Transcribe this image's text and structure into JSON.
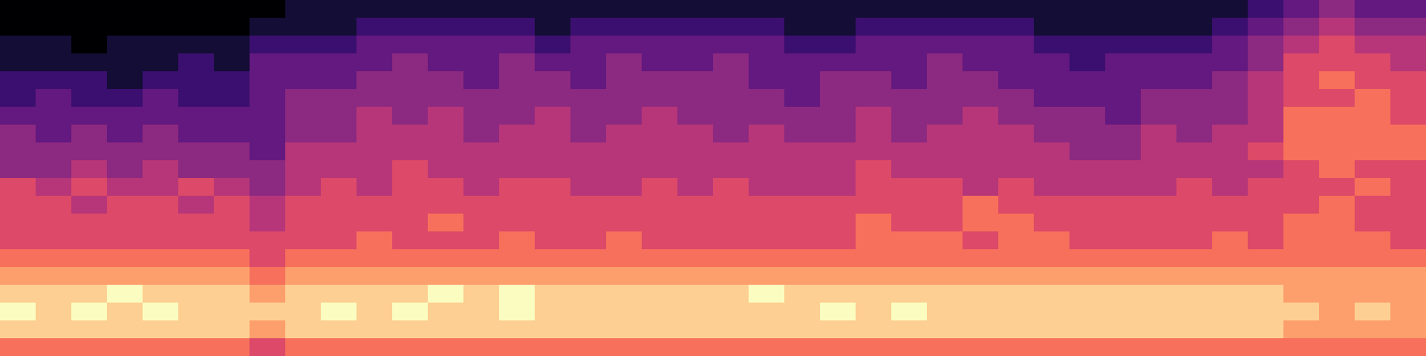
{
  "chart_data": {
    "type": "heatmap",
    "color": "magma",
    "tick_labels": false,
    "cell_range": [
      0,
      10
    ],
    "cells": [
      [
        0,
        0,
        0,
        0,
        0,
        0,
        0,
        0,
        1,
        1,
        1,
        1,
        1,
        1,
        1,
        1,
        1,
        1,
        1,
        1,
        1,
        1,
        1,
        1,
        1,
        1,
        1,
        1,
        1,
        1,
        1,
        1,
        1,
        1,
        1,
        2,
        3,
        4,
        3,
        3
      ],
      [
        0,
        0,
        0,
        0,
        0,
        0,
        0,
        1,
        1,
        1,
        2,
        2,
        2,
        2,
        2,
        1,
        2,
        2,
        2,
        2,
        2,
        2,
        1,
        1,
        2,
        2,
        2,
        2,
        2,
        1,
        1,
        1,
        1,
        1,
        2,
        3,
        4,
        5,
        4,
        4
      ],
      [
        1,
        1,
        0,
        1,
        1,
        1,
        1,
        2,
        2,
        2,
        3,
        3,
        3,
        3,
        3,
        2,
        3,
        3,
        3,
        3,
        3,
        3,
        2,
        2,
        3,
        3,
        3,
        3,
        3,
        2,
        2,
        2,
        2,
        2,
        3,
        4,
        5,
        6,
        5,
        5
      ],
      [
        1,
        1,
        1,
        1,
        1,
        2,
        1,
        3,
        3,
        3,
        3,
        4,
        3,
        3,
        4,
        3,
        3,
        4,
        3,
        3,
        4,
        3,
        3,
        3,
        3,
        3,
        4,
        3,
        3,
        3,
        2,
        3,
        3,
        3,
        3,
        4,
        6,
        6,
        6,
        5
      ],
      [
        2,
        2,
        2,
        1,
        2,
        2,
        2,
        3,
        3,
        3,
        4,
        4,
        4,
        3,
        4,
        4,
        3,
        4,
        4,
        4,
        4,
        3,
        3,
        4,
        4,
        3,
        4,
        4,
        3,
        3,
        3,
        3,
        3,
        3,
        4,
        5,
        6,
        7,
        6,
        6
      ],
      [
        2,
        3,
        2,
        2,
        3,
        2,
        2,
        3,
        4,
        4,
        4,
        4,
        4,
        4,
        4,
        4,
        4,
        4,
        4,
        4,
        4,
        4,
        3,
        4,
        4,
        4,
        4,
        4,
        4,
        3,
        3,
        3,
        4,
        4,
        4,
        5,
        6,
        6,
        7,
        6
      ],
      [
        3,
        3,
        3,
        3,
        3,
        3,
        3,
        3,
        4,
        4,
        5,
        4,
        5,
        4,
        4,
        5,
        4,
        4,
        5,
        4,
        4,
        4,
        4,
        4,
        5,
        4,
        4,
        5,
        4,
        4,
        4,
        3,
        4,
        4,
        4,
        5,
        7,
        7,
        7,
        6
      ],
      [
        4,
        3,
        4,
        3,
        4,
        3,
        3,
        3,
        4,
        4,
        5,
        5,
        5,
        4,
        5,
        5,
        4,
        5,
        5,
        5,
        4,
        5,
        4,
        4,
        5,
        4,
        5,
        5,
        5,
        4,
        4,
        4,
        5,
        4,
        5,
        5,
        7,
        7,
        7,
        7
      ],
      [
        4,
        4,
        4,
        4,
        4,
        4,
        4,
        3,
        5,
        5,
        5,
        5,
        5,
        5,
        5,
        5,
        5,
        5,
        5,
        5,
        5,
        5,
        5,
        5,
        5,
        5,
        5,
        5,
        5,
        5,
        4,
        4,
        5,
        5,
        5,
        6,
        7,
        7,
        7,
        7
      ],
      [
        4,
        4,
        5,
        4,
        5,
        4,
        4,
        4,
        5,
        5,
        5,
        6,
        5,
        5,
        5,
        5,
        5,
        5,
        5,
        5,
        5,
        5,
        5,
        5,
        6,
        5,
        5,
        5,
        5,
        5,
        5,
        5,
        5,
        5,
        5,
        5,
        6,
        7,
        6,
        6
      ],
      [
        6,
        5,
        6,
        5,
        5,
        6,
        5,
        4,
        5,
        6,
        5,
        6,
        6,
        5,
        6,
        6,
        5,
        5,
        6,
        5,
        6,
        5,
        5,
        5,
        6,
        6,
        6,
        5,
        6,
        5,
        5,
        5,
        5,
        6,
        5,
        6,
        6,
        6,
        7,
        6
      ],
      [
        6,
        6,
        5,
        6,
        6,
        5,
        6,
        5,
        6,
        6,
        6,
        6,
        6,
        6,
        6,
        6,
        6,
        6,
        6,
        6,
        6,
        6,
        6,
        6,
        6,
        6,
        6,
        7,
        6,
        6,
        6,
        6,
        6,
        6,
        6,
        6,
        6,
        7,
        6,
        6
      ],
      [
        6,
        6,
        6,
        6,
        6,
        6,
        6,
        5,
        6,
        6,
        6,
        6,
        7,
        6,
        6,
        6,
        6,
        6,
        6,
        6,
        6,
        6,
        6,
        6,
        7,
        6,
        6,
        7,
        7,
        6,
        6,
        6,
        6,
        6,
        6,
        6,
        7,
        7,
        6,
        6
      ],
      [
        6,
        6,
        6,
        6,
        6,
        6,
        6,
        6,
        6,
        6,
        7,
        6,
        6,
        6,
        7,
        6,
        6,
        7,
        6,
        6,
        6,
        6,
        6,
        6,
        7,
        7,
        7,
        6,
        7,
        7,
        6,
        6,
        6,
        6,
        7,
        6,
        7,
        7,
        7,
        6
      ],
      [
        7,
        7,
        7,
        7,
        7,
        7,
        7,
        6,
        7,
        7,
        7,
        7,
        7,
        7,
        7,
        7,
        7,
        7,
        7,
        7,
        7,
        7,
        7,
        7,
        7,
        7,
        7,
        7,
        7,
        7,
        7,
        7,
        7,
        7,
        7,
        7,
        7,
        7,
        7,
        7
      ],
      [
        8,
        8,
        8,
        8,
        8,
        8,
        8,
        7,
        8,
        8,
        8,
        8,
        8,
        8,
        8,
        8,
        8,
        8,
        8,
        8,
        8,
        8,
        8,
        8,
        8,
        8,
        8,
        8,
        8,
        8,
        8,
        8,
        8,
        8,
        8,
        8,
        8,
        8,
        8,
        8
      ],
      [
        9,
        9,
        9,
        10,
        9,
        9,
        9,
        8,
        9,
        9,
        9,
        9,
        10,
        9,
        10,
        9,
        9,
        9,
        9,
        9,
        9,
        10,
        9,
        9,
        9,
        9,
        9,
        9,
        9,
        9,
        9,
        9,
        9,
        9,
        9,
        9,
        8,
        8,
        8,
        8
      ],
      [
        10,
        9,
        10,
        9,
        10,
        9,
        9,
        9,
        9,
        10,
        9,
        10,
        9,
        9,
        10,
        9,
        9,
        9,
        9,
        9,
        9,
        9,
        9,
        10,
        9,
        10,
        9,
        9,
        9,
        9,
        9,
        9,
        9,
        9,
        9,
        9,
        9,
        8,
        9,
        8
      ],
      [
        9,
        9,
        9,
        9,
        9,
        9,
        9,
        8,
        9,
        9,
        9,
        9,
        9,
        9,
        9,
        9,
        9,
        9,
        9,
        9,
        9,
        9,
        9,
        9,
        9,
        9,
        9,
        9,
        9,
        9,
        9,
        9,
        9,
        9,
        9,
        9,
        8,
        8,
        8,
        8
      ],
      [
        7,
        7,
        7,
        7,
        7,
        7,
        7,
        6,
        7,
        7,
        7,
        7,
        7,
        7,
        7,
        7,
        7,
        7,
        7,
        7,
        7,
        7,
        7,
        7,
        7,
        7,
        7,
        7,
        7,
        7,
        7,
        7,
        7,
        7,
        7,
        7,
        7,
        7,
        7,
        7
      ]
    ]
  }
}
